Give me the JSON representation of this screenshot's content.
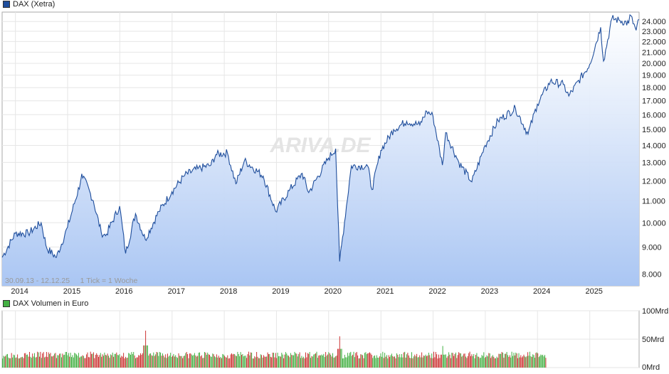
{
  "legend": {
    "price_label": "DAX (Xetra)",
    "volume_label": "DAX Volumen in Euro",
    "price_color": "#1f4e9c",
    "volume_color": "#44b044"
  },
  "watermark": "ARIVA.DE",
  "range_note": "30.09.13 - 12.12.25     1 Tick = 1 Woche",
  "chart_data": [
    {
      "type": "area",
      "title": "DAX (Xetra)",
      "y_scale": "log",
      "ylim": [
        7600,
        25000
      ],
      "x_ticks": [
        "2014",
        "2015",
        "2016",
        "2017",
        "2018",
        "2019",
        "2020",
        "2021",
        "2022",
        "2023",
        "2024",
        "2025"
      ],
      "y_tick_labels": [
        "8.000",
        "9.000",
        "10.000",
        "11.000",
        "12.000",
        "13.000",
        "14.000",
        "15.000",
        "16.000",
        "17.000",
        "18.000",
        "19.000",
        "20.000",
        "21.000",
        "22.000",
        "23.000",
        "24.000"
      ],
      "y_tick_values": [
        8000,
        9000,
        10000,
        11000,
        12000,
        13000,
        14000,
        15000,
        16000,
        17000,
        18000,
        19000,
        20000,
        21000,
        22000,
        23000,
        24000
      ],
      "grid": true,
      "series": [
        {
          "name": "DAX (Xetra)",
          "color": "#1f4e9c",
          "points": [
            [
              "2013-09-30",
              8600
            ],
            [
              "2013-12-31",
              9550
            ],
            [
              "2014-03-31",
              9550
            ],
            [
              "2014-06-30",
              10000
            ],
            [
              "2014-08-08",
              8950
            ],
            [
              "2014-10-15",
              8600
            ],
            [
              "2014-12-31",
              9800
            ],
            [
              "2015-03-31",
              11900
            ],
            [
              "2015-04-10",
              12370
            ],
            [
              "2015-06-30",
              11000
            ],
            [
              "2015-08-24",
              9600
            ],
            [
              "2015-09-24",
              9450
            ],
            [
              "2015-12-31",
              10750
            ],
            [
              "2016-02-11",
              8750
            ],
            [
              "2016-04-20",
              10400
            ],
            [
              "2016-06-27",
              9300
            ],
            [
              "2016-09-30",
              10500
            ],
            [
              "2016-12-31",
              11450
            ],
            [
              "2017-03-31",
              12300
            ],
            [
              "2017-06-30",
              12650
            ],
            [
              "2017-09-30",
              12850
            ],
            [
              "2017-11-03",
              13450
            ],
            [
              "2018-01-23",
              13550
            ],
            [
              "2018-03-23",
              11850
            ],
            [
              "2018-05-22",
              13100
            ],
            [
              "2018-09-30",
              12250
            ],
            [
              "2018-12-27",
              10500
            ],
            [
              "2019-03-31",
              11500
            ],
            [
              "2019-06-30",
              12400
            ],
            [
              "2019-08-15",
              11400
            ],
            [
              "2019-12-31",
              13250
            ],
            [
              "2020-02-19",
              13800
            ],
            [
              "2020-03-18",
              8450
            ],
            [
              "2020-06-08",
              12800
            ],
            [
              "2020-09-30",
              12800
            ],
            [
              "2020-10-30",
              11550
            ],
            [
              "2020-12-31",
              13700
            ],
            [
              "2021-03-31",
              15000
            ],
            [
              "2021-06-30",
              15550
            ],
            [
              "2021-09-30",
              15300
            ],
            [
              "2021-11-17",
              16250
            ],
            [
              "2021-12-31",
              15900
            ],
            [
              "2022-03-07",
              12850
            ],
            [
              "2022-03-30",
              14800
            ],
            [
              "2022-06-30",
              13000
            ],
            [
              "2022-09-29",
              11950
            ],
            [
              "2022-12-31",
              14000
            ],
            [
              "2023-03-31",
              15600
            ],
            [
              "2023-07-31",
              16450
            ],
            [
              "2023-10-27",
              14700
            ],
            [
              "2023-12-31",
              16750
            ],
            [
              "2024-03-31",
              18500
            ],
            [
              "2024-06-30",
              18250
            ],
            [
              "2024-08-07",
              17350
            ],
            [
              "2024-12-31",
              19900
            ],
            [
              "2025-03-18",
              23400
            ],
            [
              "2025-04-07",
              20200
            ],
            [
              "2025-06-05",
              24300
            ],
            [
              "2025-07-31",
              24100
            ],
            [
              "2025-09-30",
              23800
            ],
            [
              "2025-10-09",
              24700
            ],
            [
              "2025-11-21",
              23100
            ],
            [
              "2025-12-12",
              24200
            ]
          ]
        }
      ]
    },
    {
      "type": "bar",
      "title": "DAX Volumen in Euro",
      "ylim": [
        0,
        100
      ],
      "y_unit": "Mrd",
      "y_tick_labels": [
        "100Mrd",
        "50Mrd",
        "0Mrd"
      ],
      "y_tick_values": [
        100,
        50,
        0
      ],
      "x_ticks": [
        "2014",
        "2015",
        "2016",
        "2017",
        "2018",
        "2019",
        "2020",
        "2021",
        "2022",
        "2023",
        "2024",
        "2025"
      ],
      "grid": true,
      "series": [
        {
          "name": "DAX Volumen in Euro",
          "up_color": "#44b044",
          "down_color": "#cc3333",
          "typical_weekly_values_mrd": [
            16,
            28
          ],
          "peaks": [
            [
              "2016-06-27",
              65
            ],
            [
              "2020-03-16",
              55
            ],
            [
              "2022-03-07",
              38
            ]
          ],
          "last_week": "2024-03-01"
        }
      ]
    }
  ]
}
